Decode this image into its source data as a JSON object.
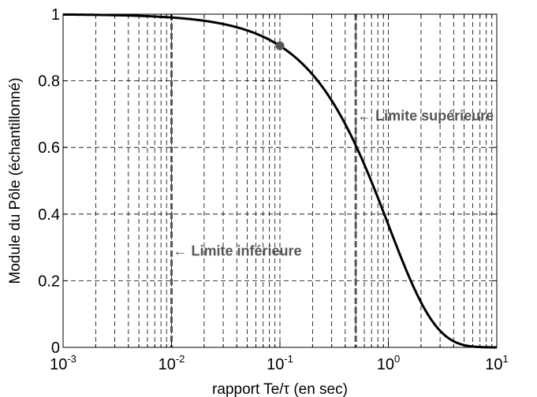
{
  "chart_data": {
    "type": "line",
    "xlabel": "rapport Te/τ (en sec)",
    "ylabel": "Module du Pôle (échantillonné)",
    "xscale": "log",
    "xlim": [
      0.001,
      10
    ],
    "ylim": [
      0,
      1
    ],
    "x_ticks": [
      {
        "value": 0.001,
        "base": "10",
        "exp": "-3"
      },
      {
        "value": 0.01,
        "base": "10",
        "exp": "-2"
      },
      {
        "value": 0.1,
        "base": "10",
        "exp": "-1"
      },
      {
        "value": 1,
        "base": "10",
        "exp": "0"
      },
      {
        "value": 10,
        "base": "10",
        "exp": "1"
      }
    ],
    "y_ticks": [
      "0",
      "0.2",
      "0.4",
      "0.6",
      "0.8",
      "1"
    ],
    "y_tick_values": [
      0,
      0.2,
      0.4,
      0.6,
      0.8,
      1
    ],
    "grid": true,
    "grid_style": "dashed, minor on x",
    "series": [
      {
        "function": "exp(-x)",
        "color": "#000000",
        "x": [
          0.001,
          0.002,
          0.005,
          0.01,
          0.02,
          0.05,
          0.1,
          0.2,
          0.3,
          0.5,
          0.7,
          1,
          1.5,
          2,
          3,
          5,
          7,
          10
        ],
        "y": [
          0.999,
          0.998,
          0.995,
          0.99,
          0.98,
          0.951,
          0.905,
          0.819,
          0.741,
          0.607,
          0.497,
          0.368,
          0.223,
          0.135,
          0.05,
          0.007,
          0.001,
          0.0
        ]
      }
    ],
    "marker": {
      "x": 0.1,
      "y": 0.905,
      "color": "#555555"
    },
    "vlines": [
      {
        "x": 0.01,
        "label": "Limite inférieure",
        "color": "#555555"
      },
      {
        "x": 0.5,
        "label": "Limite supérieure",
        "color": "#555555"
      }
    ],
    "annotations": [
      {
        "text": "← Limite inférieure",
        "x": 0.01,
        "y": 0.29
      },
      {
        "text": "← Limite supérieure",
        "x": 0.5,
        "y": 0.695
      }
    ]
  }
}
